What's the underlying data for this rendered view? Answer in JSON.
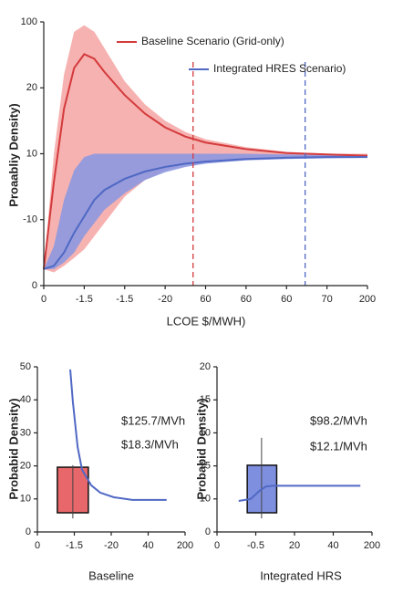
{
  "chart_data": [
    {
      "type": "line",
      "x_label": "LCOE $/MWH)",
      "y_label": "Proaabliy Density)",
      "xlim": [
        0,
        8
      ],
      "xticks": [
        0,
        {
          "value": 1,
          "label": "-1.5"
        },
        {
          "value": 2,
          "label": "-1.5"
        },
        {
          "value": 3,
          "label": "-20"
        },
        {
          "value": 4,
          "label": "60"
        },
        {
          "value": 5,
          "label": "60"
        },
        {
          "value": 6,
          "label": "60"
        },
        {
          "value": 7,
          "label": "70"
        },
        {
          "value": 8,
          "label": "200"
        }
      ],
      "ylim": [
        0,
        4
      ],
      "yticks": [
        0,
        {
          "value": 1,
          "label": "-10"
        },
        {
          "value": 2,
          "label": "10"
        },
        {
          "value": 3,
          "label": "20"
        },
        {
          "value": 4,
          "label": "100"
        }
      ],
      "legend": "top",
      "x": [
        0,
        0.25,
        0.5,
        0.75,
        1,
        1.25,
        1.5,
        2,
        2.5,
        3,
        3.5,
        4,
        5,
        6,
        7,
        8
      ],
      "series": [
        {
          "name": "Baseline Scenario (Grid-only)",
          "color": "#d43a3c",
          "band_color": "#f5a4a2",
          "values": [
            0.25,
            1.57,
            2.68,
            3.3,
            3.51,
            3.44,
            3.24,
            2.89,
            2.61,
            2.4,
            2.26,
            2.17,
            2.07,
            2.01,
            1.99,
            1.97
          ],
          "band_upper": [
            0.25,
            2.0,
            3.2,
            3.85,
            3.95,
            3.85,
            3.6,
            3.1,
            2.75,
            2.5,
            2.33,
            2.22,
            2.1,
            2.03,
            2.0,
            2.0
          ],
          "band_lower": [
            0.25,
            0.2,
            0.3,
            0.42,
            0.55,
            0.75,
            0.95,
            1.35,
            1.6,
            1.75,
            1.83,
            1.88,
            1.92,
            1.94,
            1.95,
            1.95
          ]
        },
        {
          "name": "Integrated HRES Scenario)",
          "color": "#4f68c4",
          "band_color": "#8d98e0",
          "values": [
            0.25,
            0.3,
            0.5,
            0.8,
            1.05,
            1.3,
            1.45,
            1.62,
            1.73,
            1.8,
            1.85,
            1.88,
            1.92,
            1.94,
            1.95,
            1.95
          ],
          "band_upper": [
            0.25,
            0.6,
            1.3,
            1.75,
            1.95,
            2.0,
            2.0,
            2.0,
            2.0,
            2.0,
            2.0,
            2.0,
            2.0,
            1.99,
            1.98,
            1.97
          ],
          "band_lower": [
            0.25,
            0.25,
            0.35,
            0.5,
            0.75,
            0.95,
            1.15,
            1.4,
            1.6,
            1.72,
            1.8,
            1.85,
            1.9,
            1.92,
            1.93,
            1.94
          ]
        }
      ],
      "vlines": [
        {
          "x": 3.69,
          "color": "#d43a3c"
        },
        {
          "x": 6.46,
          "color": "#4f68c4"
        }
      ]
    },
    {
      "type": "line",
      "x_label": "Baseline",
      "y_label": "Probabid Density)",
      "xlim": [
        0,
        4
      ],
      "xticks": [
        0,
        {
          "value": 1,
          "label": "-1.5"
        },
        {
          "value": 2,
          "label": "-20"
        },
        {
          "value": 3,
          "label": "40"
        },
        {
          "value": 4,
          "label": "200"
        }
      ],
      "ylim": [
        0,
        50
      ],
      "yticks": [
        0,
        10,
        20,
        30,
        40,
        50
      ],
      "x": [
        0.89,
        0.96,
        1.09,
        1.21,
        1.46,
        1.7,
        2.07,
        2.57,
        3.5
      ],
      "series": [
        {
          "color": "#4f68c4",
          "values": [
            49.2,
            39.5,
            25.7,
            18.8,
            14.1,
            11.9,
            10.5,
            9.7,
            9.7
          ]
        }
      ],
      "box": {
        "x0": 0.54,
        "x1": 1.38,
        "low": 5.8,
        "high": 19.6,
        "whisker_x": 0.96,
        "whisker_low": 4.1,
        "whisker_high": 20.2,
        "color": "#e8676a"
      },
      "annotations": [
        "$125.7/MVh",
        "$18.3/MVh"
      ]
    },
    {
      "type": "line",
      "x_label": "Integrated HRS",
      "y_label": "Probabid Density)",
      "xlim": [
        0,
        4
      ],
      "xticks": [
        0,
        {
          "value": 1,
          "label": "-0.5"
        },
        {
          "value": 2,
          "label": "20"
        },
        {
          "value": 3,
          "label": "40"
        },
        {
          "value": 4,
          "label": "200"
        }
      ],
      "ylim": [
        0,
        5
      ],
      "yticks": [
        0,
        {
          "value": 1,
          "label": "10"
        },
        {
          "value": 2,
          "label": "15"
        },
        {
          "value": 3,
          "label": "10"
        },
        {
          "value": 4,
          "label": "15"
        },
        {
          "value": 5,
          "label": "20"
        }
      ],
      "x": [
        0.56,
        0.87,
        1.1,
        1.27,
        1.46,
        3.7
      ],
      "series": [
        {
          "color": "#4f68c4",
          "values": [
            0.94,
            1.0,
            1.25,
            1.38,
            1.4,
            1.4
          ]
        }
      ],
      "box": {
        "x0": 0.78,
        "x1": 1.54,
        "low": 0.58,
        "high": 2.02,
        "whisker_x": 1.15,
        "whisker_low": 0.41,
        "whisker_high": 2.85,
        "color": "#7f8fe0"
      },
      "annotations": [
        "$98.2/MVh",
        "$12.1/MVh"
      ]
    }
  ]
}
